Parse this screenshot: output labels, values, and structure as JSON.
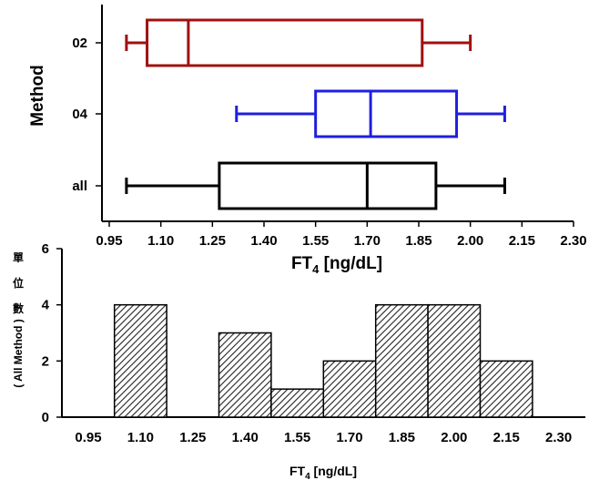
{
  "chart_data": [
    {
      "type": "boxplot",
      "xlabel_main": "FT",
      "xlabel_sub": "4",
      "xlabel_unit": " [ng/dL]",
      "ylabel": "Method",
      "xticks": [
        "0.95",
        "1.10",
        "1.25",
        "1.40",
        "1.55",
        "1.70",
        "1.85",
        "2.00",
        "2.15",
        "2.30"
      ],
      "xlim": [
        0.95,
        2.3
      ],
      "series": [
        {
          "name": "02",
          "color": "#a01010",
          "min": 1.0,
          "q1": 1.06,
          "median": 1.18,
          "q3": 1.86,
          "max": 2.0
        },
        {
          "name": "04",
          "color": "#1f1fe0",
          "min": 1.32,
          "q1": 1.55,
          "median": 1.71,
          "q3": 1.96,
          "max": 2.1
        },
        {
          "name": "all",
          "color": "#000000",
          "min": 1.0,
          "q1": 1.27,
          "median": 1.7,
          "q3": 1.9,
          "max": 2.1
        }
      ]
    },
    {
      "type": "bar",
      "xlabel_main": "FT",
      "xlabel_sub": "4",
      "xlabel_unit": " [ng/dL]",
      "ylabel_cjk": [
        "單",
        "位",
        "數"
      ],
      "ylabel_paren": "( All Method )",
      "xticks": [
        "0.95",
        "1.10",
        "1.25",
        "1.40",
        "1.55",
        "1.70",
        "1.85",
        "2.00",
        "2.15",
        "2.30"
      ],
      "yticks": [
        "0",
        "2",
        "4",
        "6"
      ],
      "ylim": [
        0,
        6
      ],
      "bins": [
        {
          "x": 1.1,
          "value": 4
        },
        {
          "x": 1.25,
          "value": 0
        },
        {
          "x": 1.4,
          "value": 3
        },
        {
          "x": 1.55,
          "value": 1
        },
        {
          "x": 1.7,
          "value": 2
        },
        {
          "x": 1.85,
          "value": 4
        },
        {
          "x": 2.0,
          "value": 4
        },
        {
          "x": 2.15,
          "value": 2
        }
      ]
    }
  ]
}
